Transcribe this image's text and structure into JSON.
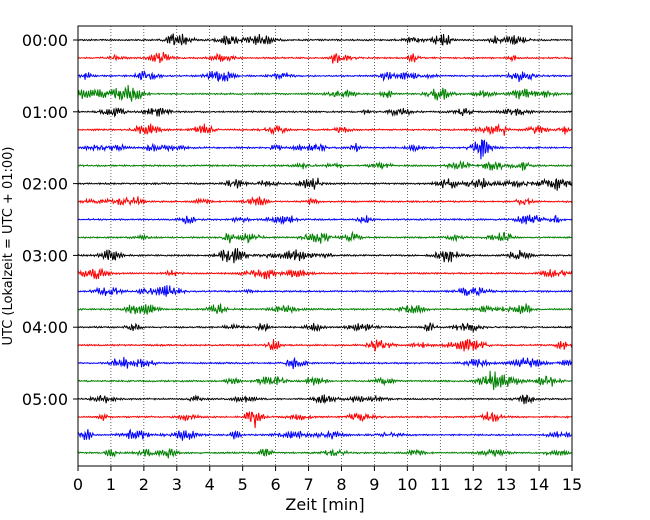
{
  "chart_data": {
    "type": "line",
    "title": "",
    "xlabel": "Zeit  [min]",
    "ylabel": "UTC (Lokalzeit = UTC + 01:00)",
    "xlim": [
      0,
      15
    ],
    "xticks": [
      "0",
      "1",
      "2",
      "3",
      "4",
      "5",
      "6",
      "7",
      "8",
      "9",
      "10",
      "11",
      "12",
      "13",
      "14",
      "15"
    ],
    "ytick_labels": [
      "00:00",
      "01:00",
      "02:00",
      "03:00",
      "04:00",
      "05:00"
    ],
    "grid": "vertical dotted lines at every minute",
    "trace_count": 24,
    "trace_interval_min": 15,
    "trace_colors": [
      "#000000",
      "#ff0000",
      "#0000ff",
      "#008000"
    ]
  }
}
